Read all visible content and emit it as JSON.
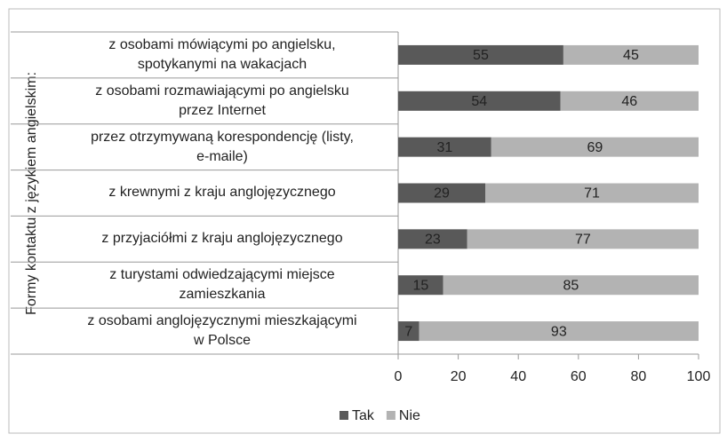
{
  "chart_data": {
    "type": "stacked_barh",
    "y_axis_label": "Formy kontaktu z językiem angielskim:",
    "categories": [
      "z osobami mówiącymi po angielsku,\nspotykanymi na wakacjach",
      "z osobami rozmawiającymi po angielsku\nprzez Internet",
      "przez otrzymywaną korespondencję (listy,\ne-maile)",
      "z krewnymi z kraju anglojęzycznego",
      "z przyjaciółmi z kraju anglojęzycznego",
      "z turystami odwiedzającymi miejsce\nzamieszkania",
      "z osobami anglojęzycznymi mieszkającymi\nw Polsce"
    ],
    "series": [
      {
        "name": "Tak",
        "color": "#595959",
        "values": [
          55,
          54,
          31,
          29,
          23,
          15,
          7
        ]
      },
      {
        "name": "Nie",
        "color": "#b3b3b3",
        "values": [
          45,
          46,
          69,
          71,
          77,
          85,
          93
        ]
      }
    ],
    "xlim": [
      0,
      100
    ],
    "xticks": [
      0,
      20,
      40,
      60,
      80,
      100
    ],
    "legend": "bottom"
  }
}
